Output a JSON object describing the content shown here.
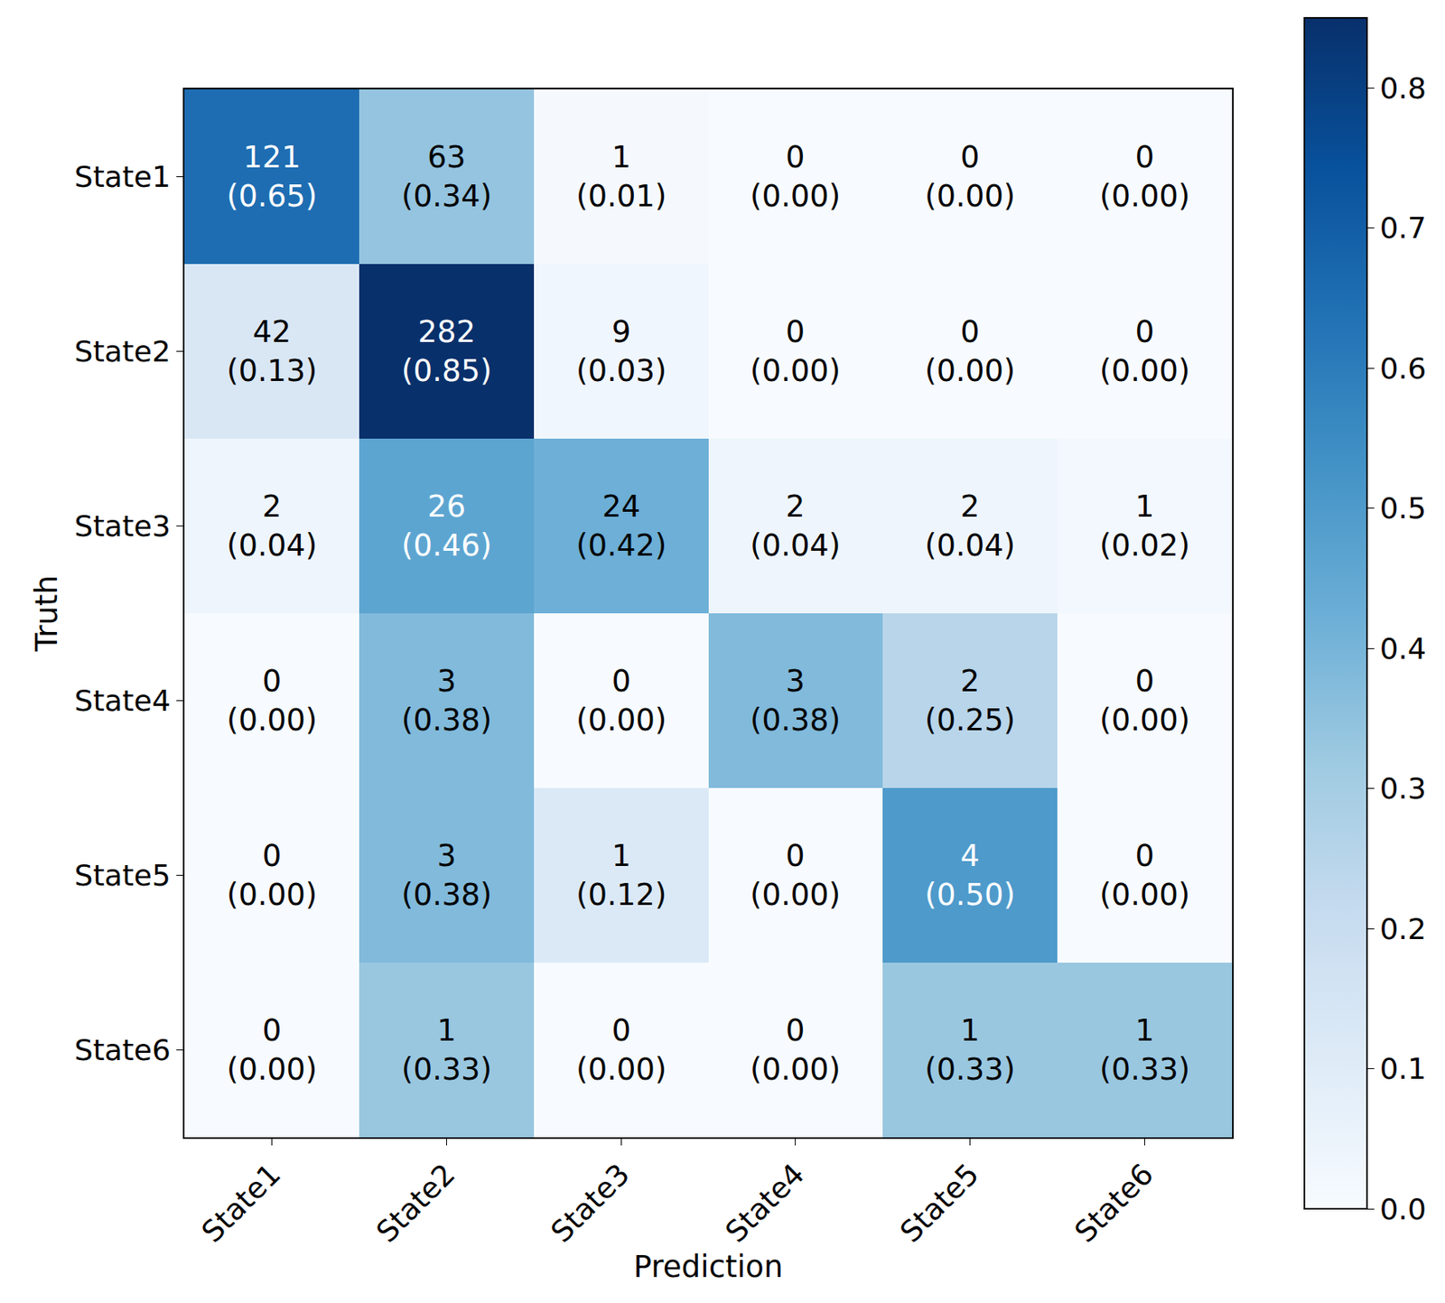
{
  "chart_data": {
    "type": "heatmap",
    "xlabel": "Prediction",
    "ylabel": "Truth",
    "x": [
      "State1",
      "State2",
      "State3",
      "State4",
      "State5",
      "State6"
    ],
    "y": [
      "State1",
      "State2",
      "State3",
      "State4",
      "State5",
      "State6"
    ],
    "values": [
      [
        0.65,
        0.34,
        0.01,
        0.0,
        0.0,
        0.0
      ],
      [
        0.13,
        0.85,
        0.03,
        0.0,
        0.0,
        0.0
      ],
      [
        0.04,
        0.46,
        0.42,
        0.04,
        0.04,
        0.02
      ],
      [
        0.0,
        0.38,
        0.0,
        0.38,
        0.25,
        0.0
      ],
      [
        0.0,
        0.38,
        0.12,
        0.0,
        0.5,
        0.0
      ],
      [
        0.0,
        0.33,
        0.0,
        0.0,
        0.33,
        0.33
      ]
    ],
    "value_labels": [
      [
        "(0.65)",
        "(0.34)",
        "(0.01)",
        "(0.00)",
        "(0.00)",
        "(0.00)"
      ],
      [
        "(0.13)",
        "(0.85)",
        "(0.03)",
        "(0.00)",
        "(0.00)",
        "(0.00)"
      ],
      [
        "(0.04)",
        "(0.46)",
        "(0.42)",
        "(0.04)",
        "(0.04)",
        "(0.02)"
      ],
      [
        "(0.00)",
        "(0.38)",
        "(0.00)",
        "(0.38)",
        "(0.25)",
        "(0.00)"
      ],
      [
        "(0.00)",
        "(0.38)",
        "(0.12)",
        "(0.00)",
        "(0.50)",
        "(0.00)"
      ],
      [
        "(0.00)",
        "(0.33)",
        "(0.00)",
        "(0.00)",
        "(0.33)",
        "(0.33)"
      ]
    ],
    "counts": [
      [
        121,
        63,
        1,
        0,
        0,
        0
      ],
      [
        42,
        282,
        9,
        0,
        0,
        0
      ],
      [
        2,
        26,
        24,
        2,
        2,
        1
      ],
      [
        0,
        3,
        0,
        3,
        2,
        0
      ],
      [
        0,
        3,
        1,
        0,
        4,
        0
      ],
      [
        0,
        1,
        0,
        0,
        1,
        1
      ]
    ],
    "zlim": [
      0,
      0.85
    ],
    "zticks": [
      {
        "value": 0,
        "label": "0.0"
      },
      0.1,
      0.2,
      0.3,
      0.4,
      0.5,
      0.6,
      0.7,
      0.8
    ],
    "data_labels": true
  }
}
